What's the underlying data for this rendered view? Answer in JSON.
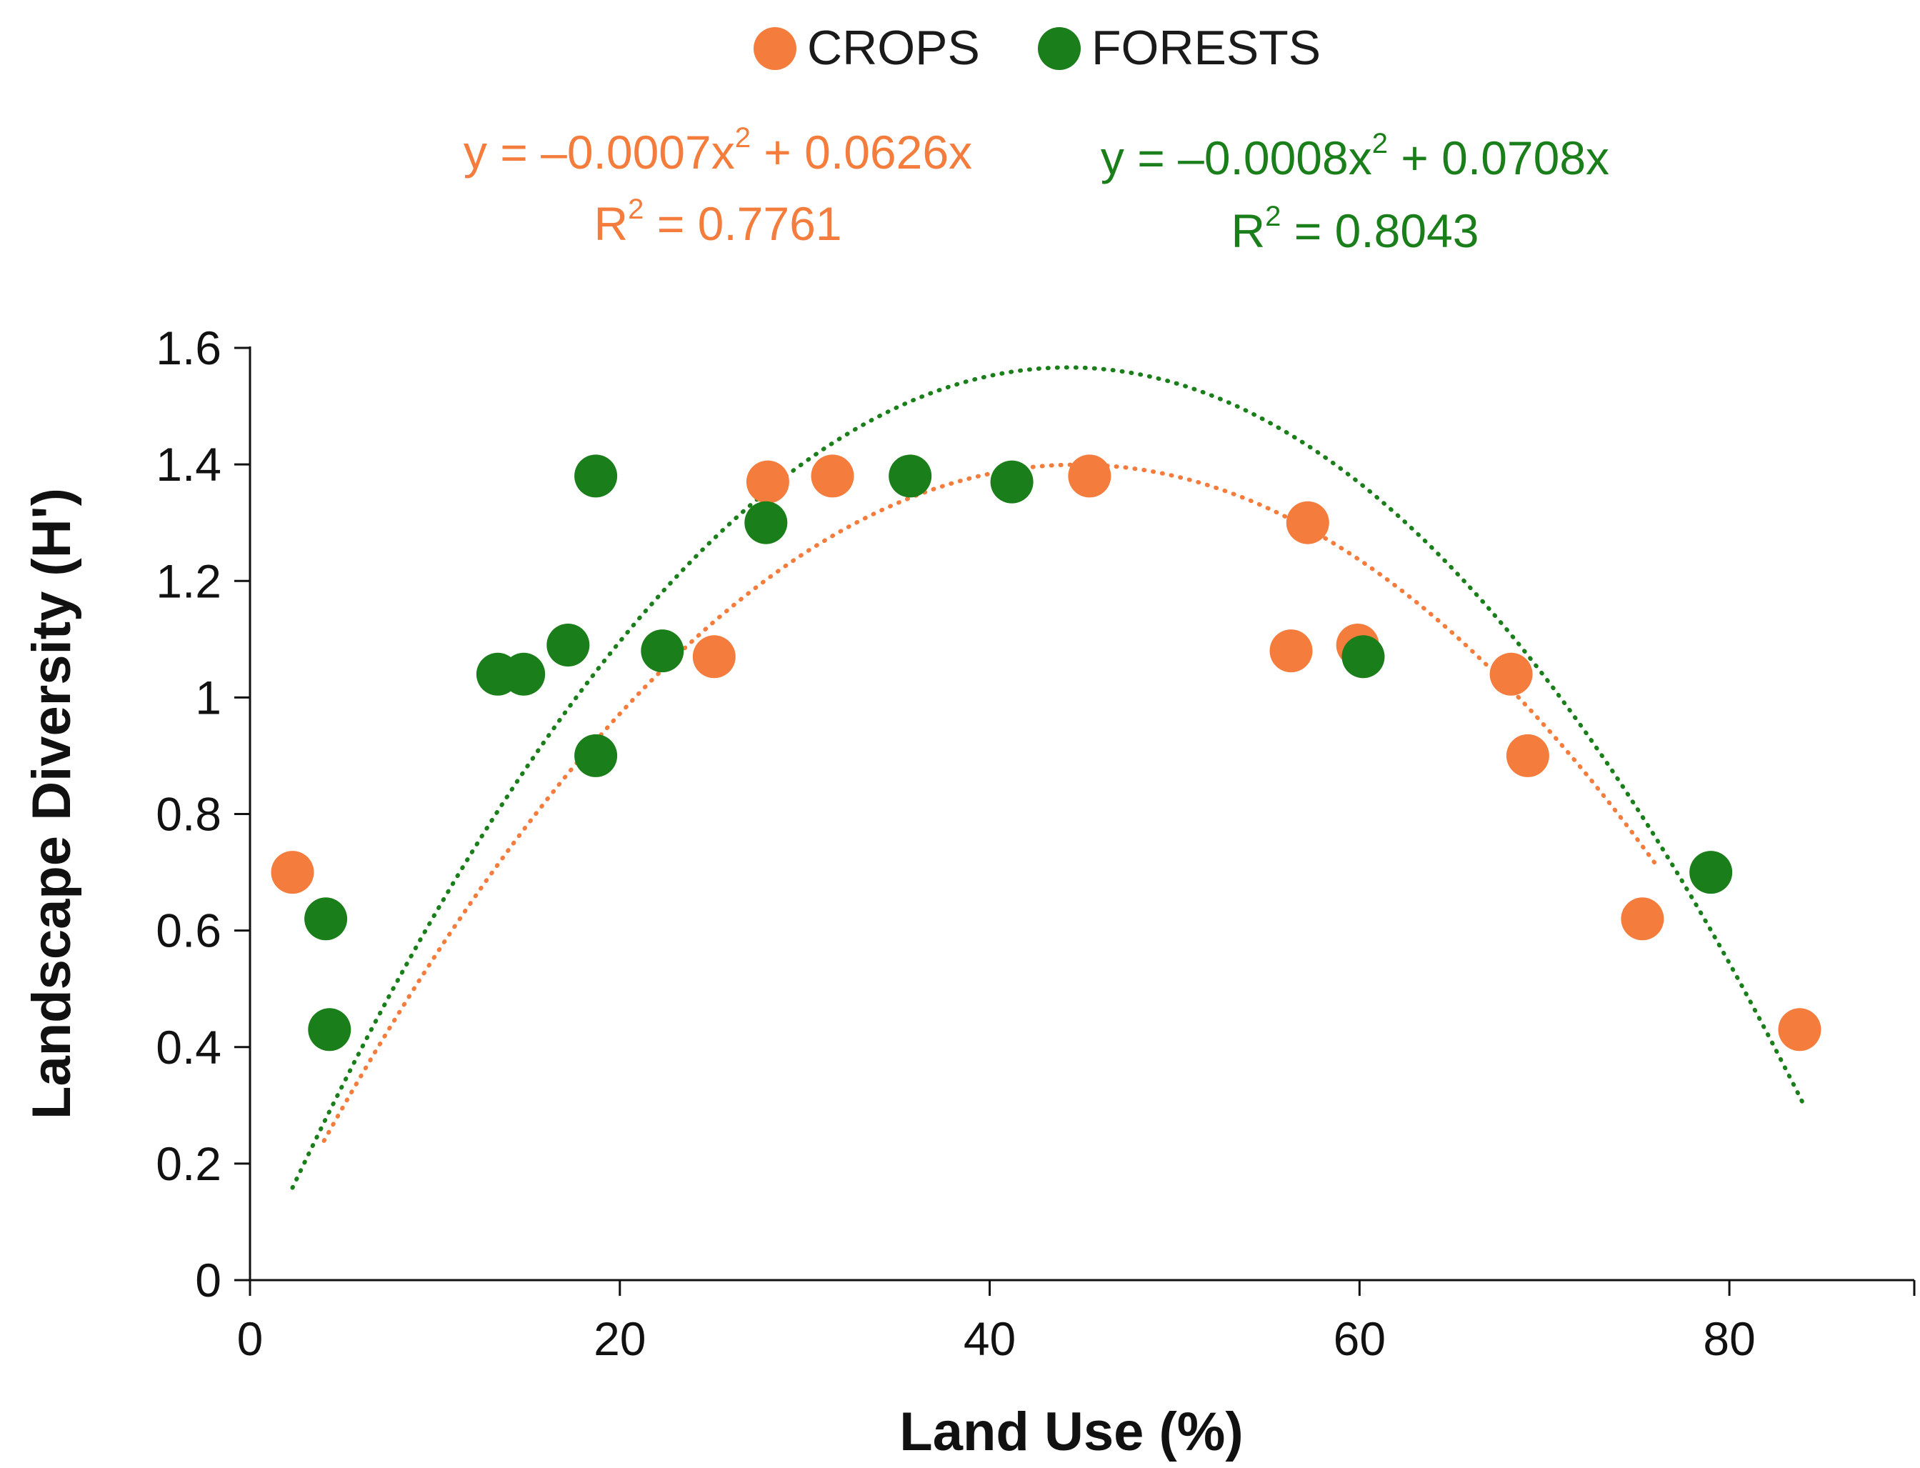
{
  "colors": {
    "crops": "#f47c3c",
    "forests": "#1a7f1a",
    "axis": "#111111"
  },
  "chart_data": {
    "type": "scatter",
    "title": "",
    "xlabel": "Land Use (%)",
    "ylabel": "Landscape Diversity (H')",
    "xlim": [
      0,
      90
    ],
    "ylim": [
      0,
      1.6
    ],
    "xticks": [
      0,
      20,
      40,
      60,
      80
    ],
    "yticks": [
      0,
      0.2,
      0.4,
      0.6,
      0.8,
      1,
      1.2,
      1.4,
      1.6
    ],
    "xtick_labels": [
      "0",
      "20",
      "40",
      "60",
      "80"
    ],
    "ytick_labels": [
      "0",
      "0.2",
      "0.4",
      "0.6",
      "0.8",
      "1",
      "1.2",
      "1.4",
      "1.6"
    ],
    "legend": [
      "CROPS",
      "FORESTS"
    ],
    "legend_position": "top",
    "series": [
      {
        "name": "CROPS",
        "color": "#f47c3c",
        "points": [
          [
            2.3,
            0.7
          ],
          [
            25.1,
            1.07
          ],
          [
            28.0,
            1.37
          ],
          [
            31.5,
            1.38
          ],
          [
            45.4,
            1.38
          ],
          [
            56.3,
            1.08
          ],
          [
            57.2,
            1.3
          ],
          [
            59.9,
            1.09
          ],
          [
            68.2,
            1.04
          ],
          [
            69.1,
            0.9
          ],
          [
            75.3,
            0.62
          ],
          [
            83.8,
            0.43
          ]
        ],
        "trend": {
          "a": -0.0007,
          "b": 0.0626,
          "c": 0.0,
          "x_range": [
            4.0,
            76.0
          ]
        },
        "equation_prefix": "y = –0.0007x",
        "equation_exp": "2",
        "equation_suffix": " + 0.0626x",
        "r2_prefix": "R",
        "r2_exp": "2",
        "r2_suffix": " = 0.7761"
      },
      {
        "name": "FORESTS",
        "color": "#1a7f1a",
        "points": [
          [
            4.1,
            0.62
          ],
          [
            4.3,
            0.43
          ],
          [
            13.4,
            1.04
          ],
          [
            14.8,
            1.04
          ],
          [
            17.2,
            1.09
          ],
          [
            18.7,
            1.38
          ],
          [
            18.7,
            0.9
          ],
          [
            22.3,
            1.08
          ],
          [
            27.9,
            1.3
          ],
          [
            35.7,
            1.38
          ],
          [
            41.2,
            1.37
          ],
          [
            60.2,
            1.07
          ],
          [
            79.0,
            0.7
          ]
        ],
        "trend": {
          "a": -0.0008,
          "b": 0.0708,
          "c": 0.0,
          "x_range": [
            2.3,
            84.0
          ]
        },
        "equation_prefix": "y = –0.0008x",
        "equation_exp": "2",
        "equation_suffix": " + 0.0708x",
        "r2_prefix": "R",
        "r2_exp": "2",
        "r2_suffix": " = 0.8043"
      }
    ]
  }
}
